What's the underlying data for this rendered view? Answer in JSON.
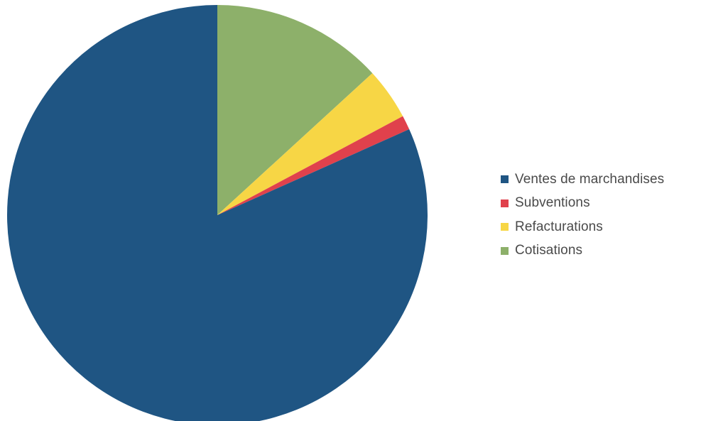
{
  "chart_data": {
    "type": "pie",
    "title": "",
    "start": "top, clockwise",
    "slices": [
      {
        "label": "Cotisations",
        "value": 13.2,
        "color": "#8db06a"
      },
      {
        "label": "Refacturations",
        "value": 4.0,
        "color": "#f7d645"
      },
      {
        "label": "Subventions",
        "value": 1.1,
        "color": "#e0414c"
      },
      {
        "label": "Ventes de marchandises",
        "value": 81.7,
        "color": "#1f5583"
      }
    ],
    "legend": {
      "position": "right",
      "items": [
        {
          "label": "Ventes de marchandises",
          "color": "#1f5583"
        },
        {
          "label": "Subventions",
          "color": "#e0414c"
        },
        {
          "label": "Refacturations",
          "color": "#f7d645"
        },
        {
          "label": "Cotisations",
          "color": "#8db06a"
        }
      ]
    }
  }
}
